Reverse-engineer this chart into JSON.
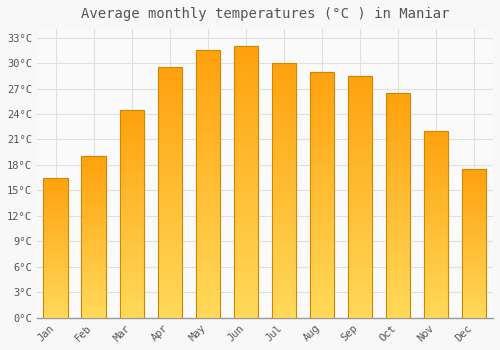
{
  "title": "Average monthly temperatures (°C ) in Maniar",
  "months": [
    "Jan",
    "Feb",
    "Mar",
    "Apr",
    "May",
    "Jun",
    "Jul",
    "Aug",
    "Sep",
    "Oct",
    "Nov",
    "Dec"
  ],
  "values": [
    16.5,
    19.0,
    24.5,
    29.5,
    31.5,
    32.0,
    30.0,
    29.0,
    28.5,
    26.5,
    22.0,
    17.5
  ],
  "bar_color_main": "#FFA500",
  "bar_color_light": "#FFD070",
  "bar_edge_color": "#CC8800",
  "background_color": "#F8F8F8",
  "plot_bg_color": "#FAFAFA",
  "grid_color": "#E0E0E0",
  "text_color": "#555555",
  "ylim": [
    0,
    34
  ],
  "yticks": [
    0,
    3,
    6,
    9,
    12,
    15,
    18,
    21,
    24,
    27,
    30,
    33
  ],
  "title_fontsize": 10,
  "tick_fontsize": 7.5,
  "font_family": "monospace"
}
